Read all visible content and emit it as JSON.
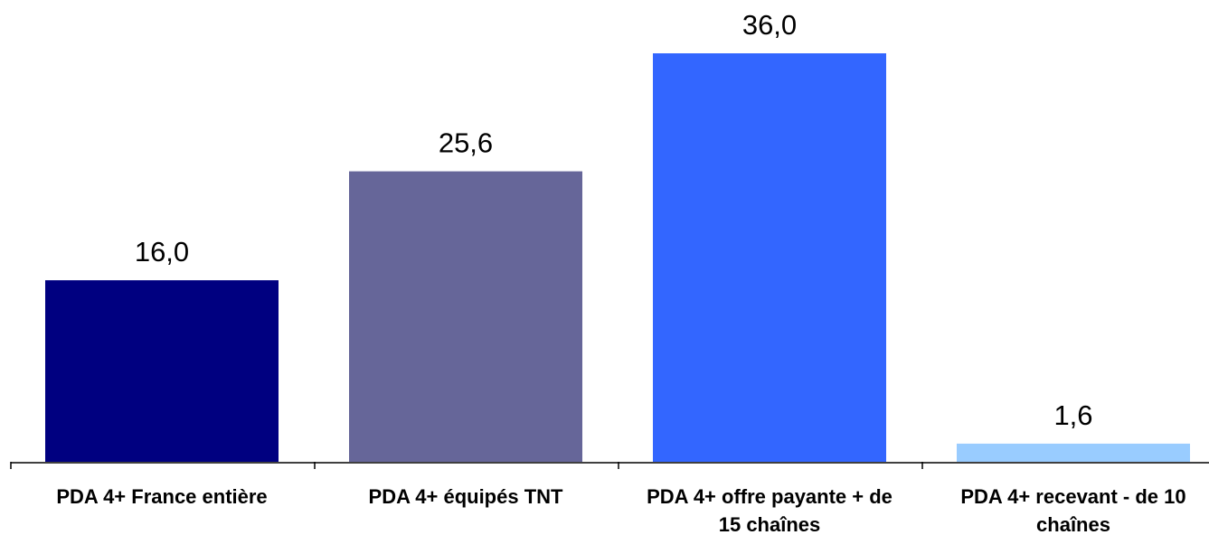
{
  "chart_data": {
    "type": "bar",
    "categories": [
      [
        "PDA 4+ France entière"
      ],
      [
        "PDA 4+ équipés TNT"
      ],
      [
        "PDA 4+ offre payante + de",
        "15 chaînes"
      ],
      [
        "PDA 4+ recevant - de 10",
        "chaînes"
      ]
    ],
    "values": [
      16.0,
      25.6,
      36.0,
      1.6
    ],
    "value_labels": [
      "16,0",
      "25,6",
      "36,0",
      "1,6"
    ],
    "colors": [
      "#000080",
      "#666699",
      "#3366FF",
      "#99CCFF"
    ],
    "ylim": [
      0,
      36
    ],
    "title": "",
    "xlabel": "",
    "ylabel": "",
    "grid": false,
    "legend": "none"
  }
}
